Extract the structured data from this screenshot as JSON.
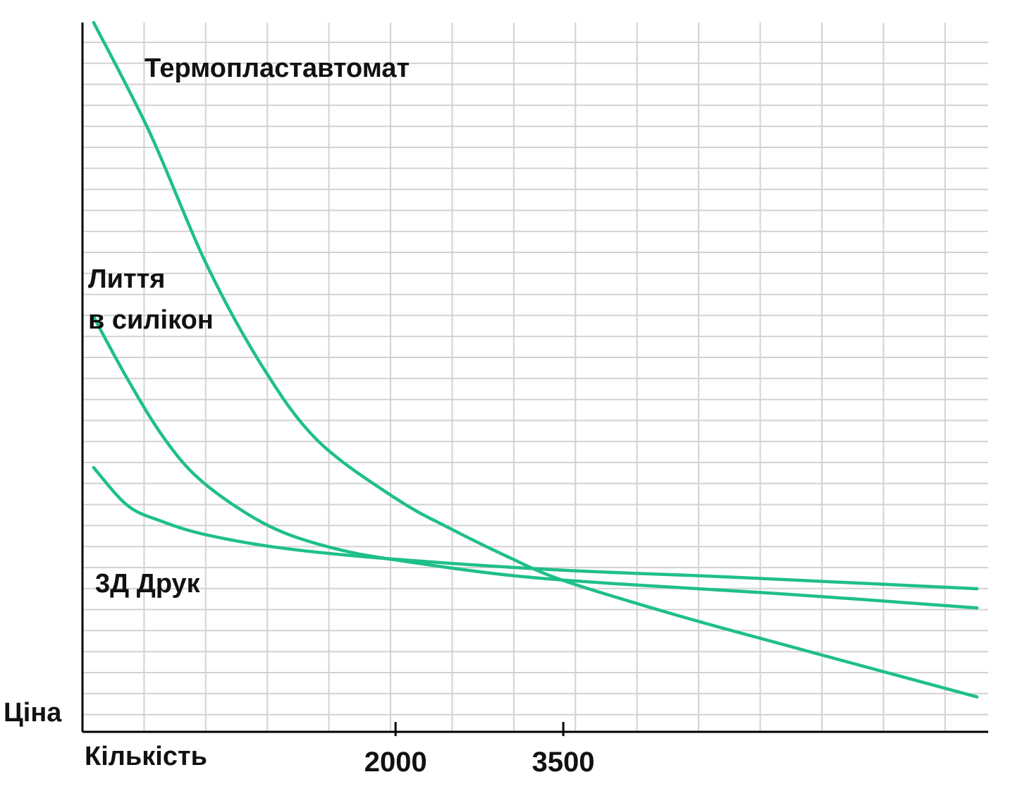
{
  "chart_data": {
    "type": "line",
    "title": "",
    "xlabel": "Кількість",
    "ylabel": "Ціна",
    "grid": true,
    "legend": "inline labels",
    "x_ticks": [
      {
        "value": 2000,
        "label": "2000"
      },
      {
        "value": 3500,
        "label": "3500"
      }
    ],
    "xlim": [
      -800,
      7300
    ],
    "ylim": [
      0,
      100
    ],
    "colors": {
      "line": "#1fbf8a",
      "grid": "#d2d2d2",
      "axis": "#000000"
    },
    "series": [
      {
        "name": "Термопластавтомат",
        "label_lines": [
          "Термопластавтомат"
        ],
        "points": [
          {
            "x": -700,
            "y": 100
          },
          {
            "x": -200,
            "y": 84
          },
          {
            "x": 300,
            "y": 65
          },
          {
            "x": 800,
            "y": 50
          },
          {
            "x": 1300,
            "y": 39
          },
          {
            "x": 2000,
            "y": 30.5
          },
          {
            "x": 2500,
            "y": 26
          },
          {
            "x": 3000,
            "y": 22
          },
          {
            "x": 3500,
            "y": 18.5
          },
          {
            "x": 4500,
            "y": 13.5
          },
          {
            "x": 5500,
            "y": 9
          },
          {
            "x": 7200,
            "y": 1.5
          }
        ]
      },
      {
        "name": "Лиття в силікон",
        "label_lines": [
          "Лиття",
          "в силікон"
        ],
        "points": [
          {
            "x": -700,
            "y": 57
          },
          {
            "x": -400,
            "y": 48
          },
          {
            "x": -100,
            "y": 40
          },
          {
            "x": 200,
            "y": 34
          },
          {
            "x": 600,
            "y": 29
          },
          {
            "x": 1000,
            "y": 25.5
          },
          {
            "x": 1500,
            "y": 23
          },
          {
            "x": 2000,
            "y": 21.5
          },
          {
            "x": 3000,
            "y": 19.3
          },
          {
            "x": 4000,
            "y": 18
          },
          {
            "x": 5500,
            "y": 16.5
          },
          {
            "x": 7200,
            "y": 14.5
          }
        ]
      },
      {
        "name": "3Д Друк",
        "label_lines": [
          "3Д Друк"
        ],
        "points": [
          {
            "x": -700,
            "y": 35
          },
          {
            "x": -400,
            "y": 29.5
          },
          {
            "x": -100,
            "y": 27.2
          },
          {
            "x": 300,
            "y": 25.2
          },
          {
            "x": 1000,
            "y": 23.2
          },
          {
            "x": 2000,
            "y": 21.6
          },
          {
            "x": 3500,
            "y": 20
          },
          {
            "x": 5000,
            "y": 19
          },
          {
            "x": 7200,
            "y": 17.3
          }
        ]
      }
    ]
  }
}
